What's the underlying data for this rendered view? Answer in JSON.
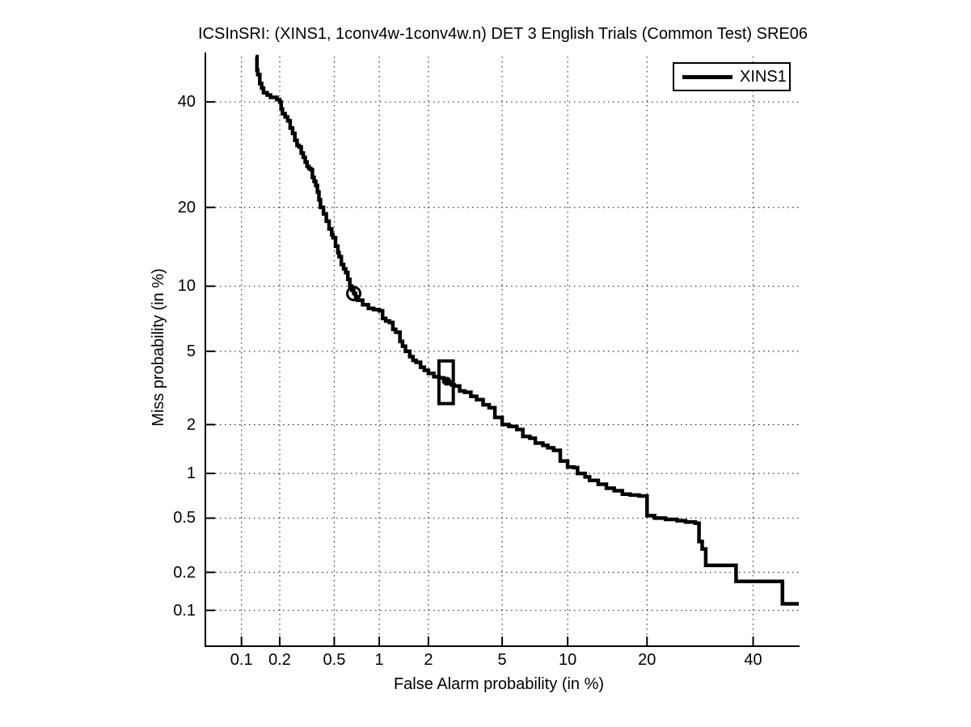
{
  "chart_data": {
    "type": "line",
    "subtype": "DET curve (detection error tradeoff, normal-deviate probit scale on both axes)",
    "title": "ICSInSRI: (XINS1, 1conv4w-1conv4w.n) DET 3 English Trials (Common Test) SRE06",
    "xlabel": "False Alarm probability (in %)",
    "ylabel": "Miss probability (in %)",
    "x_ticks_percent": [
      0.1,
      0.2,
      0.5,
      1,
      2,
      5,
      10,
      20,
      40
    ],
    "y_ticks_percent": [
      0.1,
      0.2,
      0.5,
      1,
      2,
      5,
      10,
      20,
      40
    ],
    "x_tick_labels": [
      "0.1",
      "0.2",
      "0.5",
      "1",
      "2",
      "5",
      "10",
      "20",
      "40"
    ],
    "y_tick_labels": [
      "0.1",
      "0.2",
      "0.5",
      "1",
      "2",
      "5",
      "10",
      "20",
      "40"
    ],
    "xlim_percent": [
      0.05,
      50
    ],
    "ylim_percent": [
      0.05,
      50
    ],
    "grid": "dotted",
    "legend": {
      "position": "top-right",
      "entries": [
        {
          "label": "XINS1",
          "color": "#000000"
        }
      ]
    },
    "series": [
      {
        "name": "XINS1",
        "color": "#000000",
        "style": "stepped",
        "points_fa_miss_percent": [
          [
            0.13,
            50
          ],
          [
            0.133,
            47
          ],
          [
            0.135,
            46
          ],
          [
            0.14,
            44
          ],
          [
            0.145,
            43
          ],
          [
            0.15,
            42
          ],
          [
            0.16,
            41.5
          ],
          [
            0.17,
            41
          ],
          [
            0.19,
            40.5
          ],
          [
            0.2,
            40
          ],
          [
            0.205,
            38.5
          ],
          [
            0.21,
            37.5
          ],
          [
            0.22,
            36.8
          ],
          [
            0.23,
            36
          ],
          [
            0.24,
            34.5
          ],
          [
            0.25,
            33.4
          ],
          [
            0.26,
            32
          ],
          [
            0.27,
            31
          ],
          [
            0.28,
            30.7
          ],
          [
            0.29,
            29.5
          ],
          [
            0.3,
            28.7
          ],
          [
            0.31,
            27.8
          ],
          [
            0.32,
            27
          ],
          [
            0.33,
            26.6
          ],
          [
            0.34,
            26.4
          ],
          [
            0.35,
            25
          ],
          [
            0.36,
            24.3
          ],
          [
            0.37,
            23.6
          ],
          [
            0.38,
            22.5
          ],
          [
            0.39,
            21.2
          ],
          [
            0.4,
            20
          ],
          [
            0.42,
            19
          ],
          [
            0.44,
            17.9
          ],
          [
            0.46,
            16.8
          ],
          [
            0.48,
            16
          ],
          [
            0.49,
            15.6
          ],
          [
            0.51,
            14.5
          ],
          [
            0.53,
            13.7
          ],
          [
            0.54,
            13.2
          ],
          [
            0.56,
            12.3
          ],
          [
            0.58,
            11.8
          ],
          [
            0.6,
            11.4
          ],
          [
            0.62,
            10.7
          ],
          [
            0.64,
            10
          ],
          [
            0.66,
            9.6
          ],
          [
            0.68,
            9.3
          ],
          [
            0.7,
            9.0
          ],
          [
            0.72,
            8.7
          ],
          [
            0.78,
            8.3
          ],
          [
            0.85,
            8.0
          ],
          [
            0.92,
            7.9
          ],
          [
            1.0,
            7.8
          ],
          [
            1.05,
            7.2
          ],
          [
            1.1,
            7.0
          ],
          [
            1.16,
            6.9
          ],
          [
            1.22,
            6.4
          ],
          [
            1.27,
            6.2
          ],
          [
            1.35,
            5.6
          ],
          [
            1.4,
            5.3
          ],
          [
            1.46,
            5.0
          ],
          [
            1.55,
            4.7
          ],
          [
            1.62,
            4.5
          ],
          [
            1.69,
            4.4
          ],
          [
            1.8,
            4.15
          ],
          [
            1.89,
            4.0
          ],
          [
            2.0,
            3.85
          ],
          [
            2.15,
            3.7
          ],
          [
            2.3,
            3.65
          ],
          [
            2.45,
            3.5
          ],
          [
            2.55,
            3.45
          ],
          [
            2.7,
            3.35
          ],
          [
            2.8,
            3.3
          ],
          [
            3.0,
            3.1
          ],
          [
            3.2,
            3.05
          ],
          [
            3.45,
            2.9
          ],
          [
            3.7,
            2.78
          ],
          [
            4.0,
            2.6
          ],
          [
            4.3,
            2.5
          ],
          [
            4.6,
            2.2
          ],
          [
            5.0,
            2.0
          ],
          [
            5.4,
            1.95
          ],
          [
            5.9,
            1.87
          ],
          [
            6.3,
            1.7
          ],
          [
            6.8,
            1.66
          ],
          [
            7.2,
            1.55
          ],
          [
            7.8,
            1.5
          ],
          [
            8.2,
            1.45
          ],
          [
            8.7,
            1.4
          ],
          [
            9.3,
            1.2
          ],
          [
            10.0,
            1.1
          ],
          [
            10.6,
            1.09
          ],
          [
            11.0,
            1.0
          ],
          [
            11.8,
            0.95
          ],
          [
            12.3,
            0.9
          ],
          [
            13.3,
            0.85
          ],
          [
            14.3,
            0.8
          ],
          [
            15.3,
            0.77
          ],
          [
            16.4,
            0.73
          ],
          [
            17.5,
            0.72
          ],
          [
            18.8,
            0.71
          ],
          [
            20.0,
            0.52
          ],
          [
            21.2,
            0.5
          ],
          [
            23.0,
            0.49
          ],
          [
            25.0,
            0.48
          ],
          [
            26.5,
            0.47
          ],
          [
            28.3,
            0.46
          ],
          [
            29.0,
            0.34
          ],
          [
            29.6,
            0.3
          ],
          [
            30.3,
            0.226
          ],
          [
            36.4,
            0.226
          ],
          [
            36.4,
            0.17
          ],
          [
            46.4,
            0.17
          ],
          [
            46.4,
            0.113
          ],
          [
            50.0,
            0.113
          ]
        ]
      }
    ],
    "markers": {
      "open_circle_point": {
        "fa_percent": 0.68,
        "miss_percent": 9.3
      },
      "box_region": {
        "fa_percent_range": [
          2.3,
          2.77
        ],
        "miss_percent_range": [
          2.64,
          4.47
        ]
      },
      "filled_dot_point": {
        "fa_percent": 2.55,
        "miss_percent": 3.5
      }
    },
    "colors": {
      "curve": "#000000",
      "grid": "#333333",
      "axis": "#000000",
      "text": "#000000",
      "background": "#ffffff"
    }
  }
}
